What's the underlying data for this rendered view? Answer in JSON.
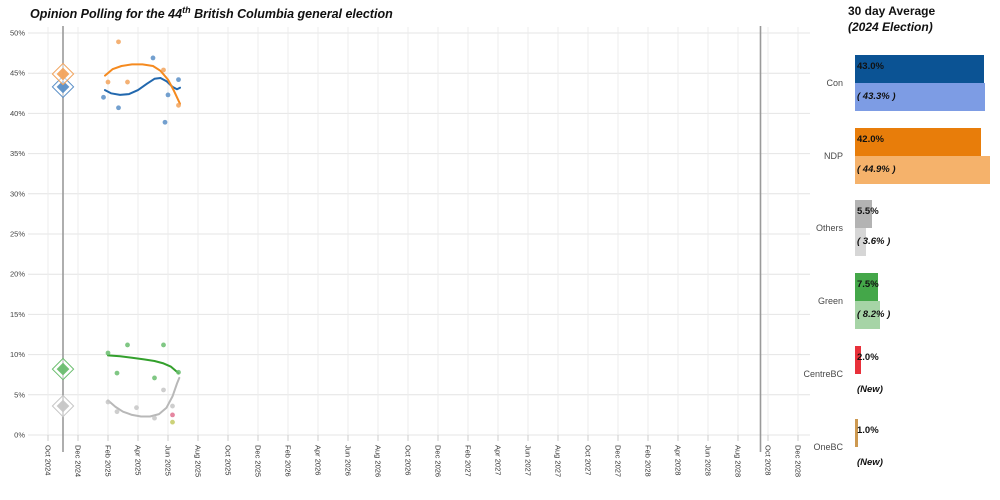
{
  "title": {
    "prefix": "Opinion Polling for the 44",
    "sup": "th",
    "suffix": " British Columbia general election"
  },
  "panel": {
    "title": "30 day Average",
    "subtitle": "(2024 Election)",
    "rows": [
      {
        "party": "Con",
        "avg_label": "43.0%",
        "avg": 43.0,
        "result_label": "( 43.3% )",
        "result": 43.3,
        "is_new": false,
        "color": "#0b5394",
        "light_color": "#7d9ce4"
      },
      {
        "party": "NDP",
        "avg_label": "42.0%",
        "avg": 42.0,
        "result_label": "( 44.9% )",
        "result": 44.9,
        "is_new": false,
        "color": "#e87d0a",
        "light_color": "#f5b26b"
      },
      {
        "party": "Others",
        "avg_label": "5.5%",
        "avg": 5.5,
        "result_label": "( 3.6% )",
        "result": 3.6,
        "is_new": false,
        "color": "#b3b3b3",
        "light_color": "#d6d6d6"
      },
      {
        "party": "Green",
        "avg_label": "7.5%",
        "avg": 7.5,
        "result_label": "( 8.2% )",
        "result": 8.2,
        "is_new": false,
        "color": "#44a749",
        "light_color": "#a6d4a6"
      },
      {
        "party": "CentreBC",
        "avg_label": "2.0%",
        "avg": 2.0,
        "result_label": "(New)",
        "result": null,
        "is_new": true,
        "color": "#e8303a",
        "light_color": null
      },
      {
        "party": "OneBC",
        "avg_label": "1.0%",
        "avg": 1.0,
        "result_label": "(New)",
        "result": null,
        "is_new": true,
        "color": "#cd9950",
        "light_color": null
      }
    ]
  },
  "chart_data": {
    "type": "scatter",
    "title": "Opinion Polling for the 44th British Columbia general election",
    "xlabel": "",
    "ylabel": "",
    "x_axis": {
      "tick_interval_months": 2,
      "ticks": [
        "Oct 2024",
        "Dec 2024",
        "Feb 2025",
        "Apr 2025",
        "Jun 2025",
        "Aug 2025",
        "Oct 2025",
        "Dec 2025",
        "Feb 2026",
        "Apr 2026",
        "Jun 2026",
        "Aug 2026",
        "Oct 2026",
        "Dec 2026",
        "Feb 2027",
        "Apr 2027",
        "Jun 2027",
        "Aug 2027",
        "Oct 2027",
        "Dec 2027",
        "Feb 2028",
        "Apr 2028",
        "Jun 2028",
        "Aug 2028",
        "Oct 2028",
        "Dec 2028"
      ]
    },
    "y_axis": {
      "min": 0,
      "max": 50,
      "step": 5,
      "tick_labels": [
        "0%",
        "5%",
        "10%",
        "15%",
        "20%",
        "25%",
        "30%",
        "35%",
        "40%",
        "45%",
        "50%"
      ]
    },
    "grid": true,
    "election_marker_months": [
      1.0,
      47.5
    ],
    "series": [
      {
        "name": "Con",
        "line_color": "#2268ae",
        "point_color": "#5a8fc7",
        "election_result": {
          "m": 1.0,
          "v": 43.3
        },
        "points": [
          [
            3.7,
            42.0
          ],
          [
            4.7,
            40.7
          ],
          [
            7.0,
            46.9
          ],
          [
            7.8,
            38.9
          ],
          [
            8.0,
            42.3
          ],
          [
            8.7,
            44.2
          ]
        ],
        "trend": [
          [
            3.8,
            42.9
          ],
          [
            4.2,
            42.5
          ],
          [
            4.8,
            42.3
          ],
          [
            5.4,
            42.4
          ],
          [
            6.0,
            42.9
          ],
          [
            6.6,
            43.7
          ],
          [
            7.1,
            44.3
          ],
          [
            7.5,
            44.4
          ],
          [
            7.9,
            44.0
          ],
          [
            8.3,
            43.3
          ],
          [
            8.6,
            43.0
          ],
          [
            8.8,
            43.2
          ]
        ]
      },
      {
        "name": "NDP",
        "line_color": "#f58a1f",
        "point_color": "#f2a35c",
        "election_result": {
          "m": 1.0,
          "v": 44.9
        },
        "points": [
          [
            4.0,
            43.9
          ],
          [
            4.7,
            48.9
          ],
          [
            5.3,
            43.9
          ],
          [
            7.7,
            45.4
          ],
          [
            8.7,
            41.0
          ]
        ],
        "trend": [
          [
            3.8,
            44.7
          ],
          [
            4.3,
            45.5
          ],
          [
            4.9,
            45.9
          ],
          [
            5.6,
            46.1
          ],
          [
            6.3,
            46.1
          ],
          [
            7.0,
            45.9
          ],
          [
            7.5,
            45.3
          ],
          [
            8.0,
            44.2
          ],
          [
            8.4,
            42.8
          ],
          [
            8.8,
            41.2
          ]
        ]
      },
      {
        "name": "Green",
        "line_color": "#33a02c",
        "point_color": "#6abd6e",
        "election_result": {
          "m": 1.0,
          "v": 8.2
        },
        "points": [
          [
            4.0,
            10.2
          ],
          [
            4.6,
            7.7
          ],
          [
            5.3,
            11.2
          ],
          [
            7.1,
            7.1
          ],
          [
            7.7,
            11.2
          ],
          [
            8.7,
            7.8
          ]
        ],
        "trend": [
          [
            4.0,
            9.9
          ],
          [
            4.8,
            9.8
          ],
          [
            5.6,
            9.6
          ],
          [
            6.4,
            9.4
          ],
          [
            7.1,
            9.2
          ],
          [
            7.7,
            8.9
          ],
          [
            8.2,
            8.5
          ],
          [
            8.7,
            7.7
          ]
        ]
      },
      {
        "name": "Others",
        "line_color": "#b8b8b8",
        "point_color": "#c6c6c6",
        "election_result": {
          "m": 1.0,
          "v": 3.6
        },
        "points": [
          [
            4.0,
            4.1
          ],
          [
            4.6,
            2.9
          ],
          [
            5.9,
            3.4
          ],
          [
            7.1,
            2.1
          ],
          [
            7.7,
            5.6
          ],
          [
            8.3,
            3.6
          ]
        ],
        "trend": [
          [
            4.0,
            4.3
          ],
          [
            4.5,
            3.5
          ],
          [
            5.0,
            2.9
          ],
          [
            5.6,
            2.5
          ],
          [
            6.2,
            2.3
          ],
          [
            6.8,
            2.3
          ],
          [
            7.4,
            2.6
          ],
          [
            7.9,
            3.4
          ],
          [
            8.3,
            4.8
          ],
          [
            8.6,
            6.4
          ],
          [
            8.75,
            7.1
          ]
        ]
      },
      {
        "name": "CentreBC",
        "line_color": "#e8303a",
        "point_color": "#e0718f",
        "election_result": null,
        "points": [
          [
            8.3,
            2.5
          ]
        ],
        "trend": []
      },
      {
        "name": "OneBC",
        "line_color": "#cd9950",
        "point_color": "#c3ca62",
        "election_result": null,
        "points": [
          [
            8.3,
            1.6
          ]
        ],
        "trend": []
      }
    ]
  }
}
